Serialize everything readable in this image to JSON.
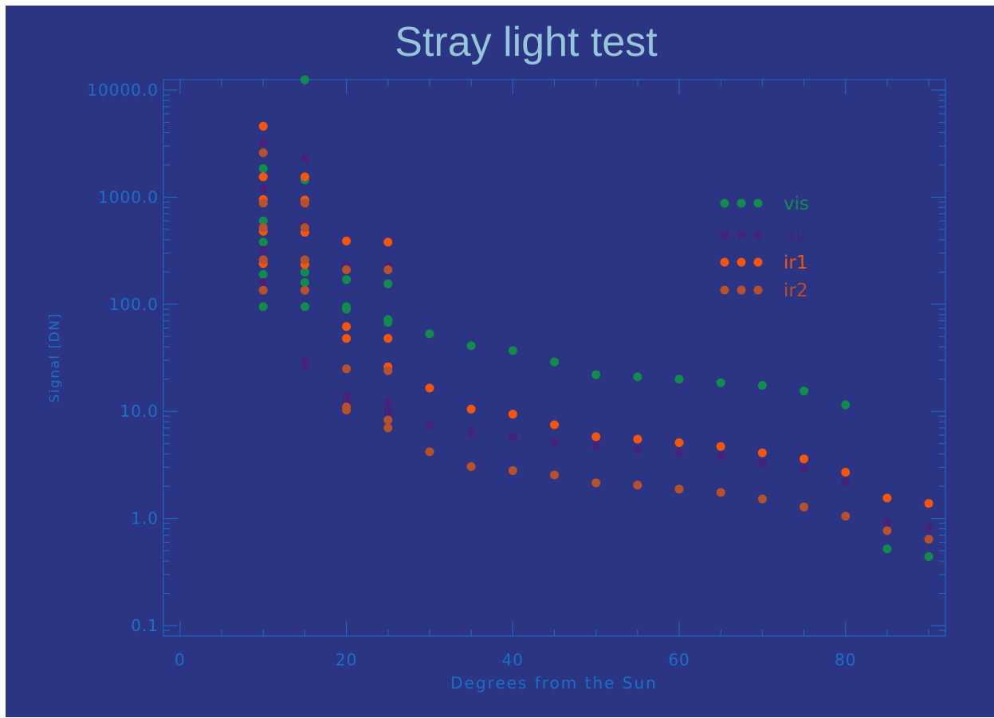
{
  "colors": {
    "background": "#2b3584",
    "axis": "#1c6fc8",
    "title": "#94c6d8",
    "vis": "#128c4c",
    "uv": "#44247a",
    "ir1": "#f6550a",
    "ir2": "#b8502a"
  },
  "chart_data": {
    "type": "scatter",
    "title": "Stray light test",
    "xlabel": "Degrees from the Sun",
    "ylabel": "Signal [DN]",
    "xlim": [
      -2,
      92
    ],
    "ylim": [
      0.08,
      12500
    ],
    "yscale": "log",
    "x_ticks": [
      0,
      20,
      40,
      60,
      80
    ],
    "x_tick_labels": [
      "0",
      "20",
      "40",
      "60",
      "80"
    ],
    "y_ticks": [
      0.1,
      1,
      10,
      100,
      1000,
      10000
    ],
    "y_tick_labels": [
      "0.1",
      "1.0",
      "10.0",
      "100.0",
      "1000.0",
      "10000.0"
    ],
    "grid": false,
    "legend_position": "upper-right",
    "legend_entries": [
      "vis",
      "uv",
      "ir1",
      "ir2"
    ],
    "series": [
      {
        "name": "vis",
        "color": "#128c4c",
        "points": [
          [
            10,
            1850
          ],
          [
            10,
            600
          ],
          [
            10,
            380
          ],
          [
            10,
            190
          ],
          [
            10,
            95
          ],
          [
            15,
            12500
          ],
          [
            15,
            1450
          ],
          [
            15,
            200
          ],
          [
            15,
            160
          ],
          [
            15,
            95
          ],
          [
            20,
            170
          ],
          [
            20,
            95
          ],
          [
            20,
            90
          ],
          [
            25,
            155
          ],
          [
            25,
            72
          ],
          [
            25,
            68
          ],
          [
            30,
            53
          ],
          [
            35,
            41
          ],
          [
            40,
            37
          ],
          [
            45,
            29
          ],
          [
            50,
            22
          ],
          [
            55,
            21
          ],
          [
            60,
            20
          ],
          [
            65,
            18.5
          ],
          [
            70,
            17.5
          ],
          [
            75,
            15.5
          ],
          [
            80,
            11.5
          ],
          [
            85,
            0.52
          ],
          [
            90,
            0.44
          ]
        ]
      },
      {
        "name": "uv",
        "color": "#44247a",
        "points": [
          [
            10,
            3200
          ],
          [
            10,
            1200
          ],
          [
            10,
            320
          ],
          [
            10,
            160
          ],
          [
            15,
            2300
          ],
          [
            15,
            550
          ],
          [
            15,
            30
          ],
          [
            15,
            27
          ],
          [
            20,
            230
          ],
          [
            20,
            14
          ],
          [
            20,
            12
          ],
          [
            25,
            230
          ],
          [
            25,
            12
          ],
          [
            25,
            10
          ],
          [
            30,
            7.4
          ],
          [
            35,
            6.4
          ],
          [
            40,
            5.8
          ],
          [
            45,
            5.2
          ],
          [
            50,
            4.8
          ],
          [
            55,
            4.4
          ],
          [
            60,
            4.1
          ],
          [
            65,
            3.8
          ],
          [
            70,
            3.3
          ],
          [
            75,
            2.9
          ],
          [
            80,
            2.2
          ],
          [
            85,
            0.92
          ],
          [
            90,
            0.82
          ]
        ]
      },
      {
        "name": "ir1",
        "color": "#f6550a",
        "points": [
          [
            10,
            4600
          ],
          [
            10,
            1550
          ],
          [
            10,
            950
          ],
          [
            10,
            480
          ],
          [
            10,
            240
          ],
          [
            15,
            1550
          ],
          [
            15,
            940
          ],
          [
            15,
            470
          ],
          [
            15,
            235
          ],
          [
            20,
            390
          ],
          [
            20,
            62
          ],
          [
            20,
            48
          ],
          [
            25,
            380
          ],
          [
            25,
            48
          ],
          [
            25,
            26
          ],
          [
            30,
            16.5
          ],
          [
            35,
            10.5
          ],
          [
            40,
            9.4
          ],
          [
            45,
            7.5
          ],
          [
            50,
            5.8
          ],
          [
            55,
            5.5
          ],
          [
            60,
            5.1
          ],
          [
            65,
            4.7
          ],
          [
            70,
            4.1
          ],
          [
            75,
            3.6
          ],
          [
            80,
            2.7
          ],
          [
            85,
            1.55
          ],
          [
            90,
            1.38
          ]
        ]
      },
      {
        "name": "ir2",
        "color": "#b8502a",
        "points": [
          [
            10,
            2600
          ],
          [
            10,
            880
          ],
          [
            10,
            520
          ],
          [
            10,
            260
          ],
          [
            10,
            135
          ],
          [
            15,
            880
          ],
          [
            15,
            520
          ],
          [
            15,
            260
          ],
          [
            15,
            135
          ],
          [
            20,
            210
          ],
          [
            20,
            25
          ],
          [
            20,
            11
          ],
          [
            20,
            10.3
          ],
          [
            25,
            210
          ],
          [
            25,
            24
          ],
          [
            25,
            8.3
          ],
          [
            25,
            7
          ],
          [
            30,
            4.2
          ],
          [
            35,
            3.05
          ],
          [
            40,
            2.8
          ],
          [
            45,
            2.55
          ],
          [
            50,
            2.15
          ],
          [
            55,
            2.05
          ],
          [
            60,
            1.88
          ],
          [
            65,
            1.75
          ],
          [
            70,
            1.52
          ],
          [
            75,
            1.28
          ],
          [
            80,
            1.05
          ],
          [
            85,
            0.77
          ],
          [
            90,
            0.64
          ]
        ]
      }
    ]
  }
}
